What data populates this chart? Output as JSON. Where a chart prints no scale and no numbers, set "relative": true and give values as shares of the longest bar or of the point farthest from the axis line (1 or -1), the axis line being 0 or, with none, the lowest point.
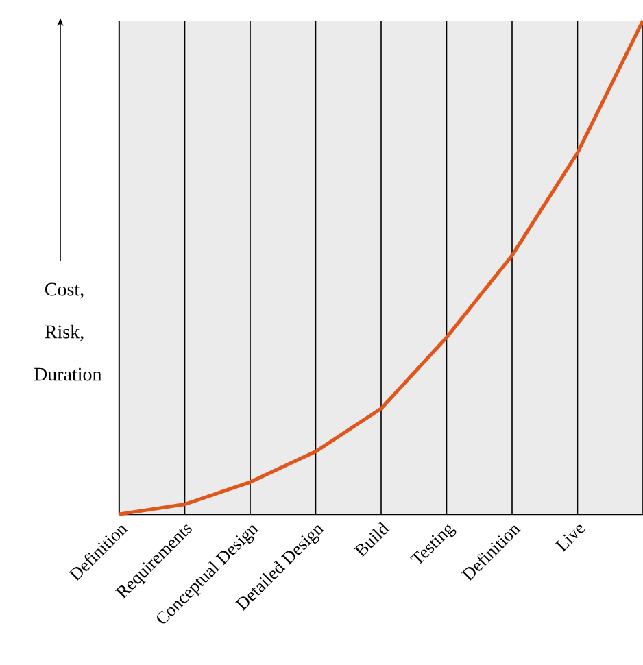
{
  "chart_data": {
    "type": "line",
    "relative": true,
    "ylabel": "Cost, Risk, Duration",
    "categories": [
      "Definition",
      "Requirements",
      "Conceptual Design",
      "Detailed Design",
      "Build",
      "Testing",
      "Definition",
      "Live",
      null
    ],
    "series": [
      {
        "color": "#e0561b",
        "values": [
          0,
          0.02,
          0.065,
          0.127,
          0.214,
          0.358,
          0.524,
          0.732,
          1
        ]
      }
    ],
    "grid": "x",
    "marker": "none",
    "line_style": "solid"
  }
}
